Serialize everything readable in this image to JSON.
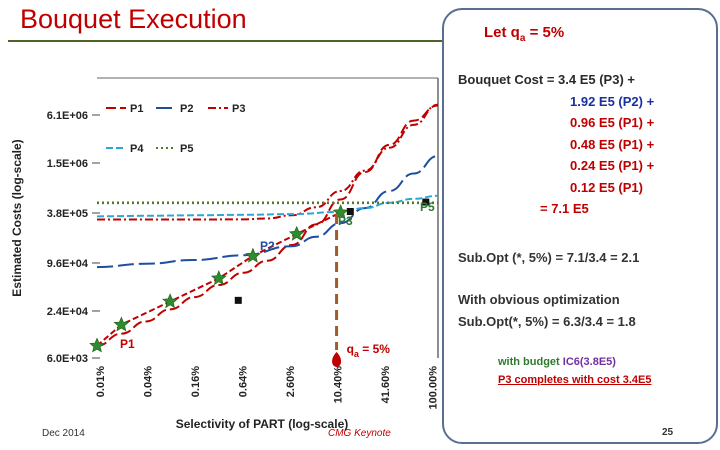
{
  "slide": {
    "title": "Bouquet Execution",
    "footer_date": "Dec 2014",
    "footer_event": "CMG Keynote",
    "page_number": "25"
  },
  "panel": {
    "let_text": "Let q",
    "let_sub": "a",
    "let_value": " = 5%",
    "cost_lines": [
      {
        "text": "Bouquet Cost = 3.4  E5 (P3) +",
        "color": "#2a2a2a"
      },
      {
        "text": "1.92  E5 (P2) +",
        "color": "#1a2fa0"
      },
      {
        "text": "0.96 E5 (P1) +",
        "color": "#c00000"
      },
      {
        "text": "0.48 E5 (P1) +",
        "color": "#c00000"
      },
      {
        "text": "0.24 E5 (P1) +",
        "color": "#c00000"
      },
      {
        "text": "0.12 E5 (P1)",
        "color": "#c00000"
      },
      {
        "text": "=  7.1  E5",
        "color": "#c00000"
      }
    ],
    "subopt": "Sub.Opt (*, 5%) = 7.1/3.4 = 2.1",
    "opt_line1": "With obvious optimization",
    "opt_line2": "Sub.Opt(*, 5%) = 6.3/3.4 = 1.8",
    "budget_line1_prefix": "with budget ",
    "budget_line1_value": "IC6(3.8E5)",
    "budget_line2": "P3 completes with cost 3.4E5"
  },
  "chart_data": {
    "type": "line",
    "xlabel": "Selectivity of PART (log-scale)",
    "ylabel": "Estimated Costs (log-scale)",
    "x_ticks": [
      "0.01%",
      "0.04%",
      "0.16%",
      "0.64%",
      "2.60%",
      "10.40%",
      "41.60%",
      "100.00%"
    ],
    "y_ticks": [
      "6.1E+06",
      "1.5E+06",
      "3.8E+05",
      "9.6E+04",
      "2.4E+04",
      "6.0E+03"
    ],
    "legend": [
      "P1",
      "P2",
      "P3",
      "P4",
      "P5"
    ],
    "series": [
      {
        "name": "P1",
        "color": "#c00000",
        "dash": "10,4",
        "x": [
          0,
          0.5,
          1,
          1.5,
          2,
          2.5,
          3,
          3.5,
          4,
          4.5,
          5,
          5.5,
          6,
          6.5,
          7
        ],
        "y": [
          8500.0,
          12000.0,
          17000.0,
          24000.0,
          34000.0,
          48000.0,
          68000.0,
          96000.0,
          150000.0,
          270000.0,
          550000.0,
          1200000.0,
          2600000.0,
          5200000.0,
          8000000.0
        ]
      },
      {
        "name": "P2",
        "color": "#1f4ea0",
        "dash": "16,5",
        "x": [
          0,
          1,
          2,
          3,
          4,
          4.5,
          5,
          5.5,
          6,
          6.5,
          7
        ],
        "y": [
          80000.0,
          88000.0,
          98000.0,
          112000.0,
          145000.0,
          190000.0,
          280000.0,
          430000.0,
          700000.0,
          1150000.0,
          1900000.0
        ]
      },
      {
        "name": "P3",
        "color": "#c00000",
        "dash": "8,3,2,3",
        "x": [
          0,
          1,
          2,
          3,
          3.5,
          4,
          4.5,
          5,
          5.5,
          6,
          6.5,
          7
        ],
        "y": [
          310000.0,
          310000.0,
          310000.0,
          312000.0,
          320000.0,
          350000.0,
          440000.0,
          700000.0,
          1250000.0,
          2400000.0,
          4600000.0,
          8200000.0
        ]
      },
      {
        "name": "P4",
        "color": "#2aa7d6",
        "dash": "7,3",
        "x": [
          0,
          1,
          2,
          3,
          4,
          5,
          5.5,
          6,
          6.5,
          7
        ],
        "y": [
          340000.0,
          345000.0,
          350000.0,
          355000.0,
          362000.0,
          385000.0,
          430000.0,
          500000.0,
          560000.0,
          610000.0
        ]
      },
      {
        "name": "P5",
        "color": "#4f7a28",
        "dash": "2,3",
        "x": [
          0,
          7
        ],
        "y": [
          500000.0,
          500000.0
        ]
      }
    ],
    "bouquet_stars": [
      {
        "x": 0.0,
        "y": 8500.0
      },
      {
        "x": 0.5,
        "y": 15500.0
      },
      {
        "x": 1.5,
        "y": 30000.0
      },
      {
        "x": 2.5,
        "y": 58000.0
      },
      {
        "x": 3.2,
        "y": 110000.0
      },
      {
        "x": 4.1,
        "y": 205000.0
      },
      {
        "x": 5.0,
        "y": 380000.0
      }
    ],
    "plan_labels": [
      "P1",
      "P2",
      "P3",
      "P5"
    ],
    "qa_label": "q",
    "qa_sub": "a",
    "qa_value": " = 5%",
    "qa_x": 5.0,
    "bouquet_color": "#c00000",
    "star_color": "#2e8b2e",
    "drop_line_color": "#a05a2c"
  }
}
